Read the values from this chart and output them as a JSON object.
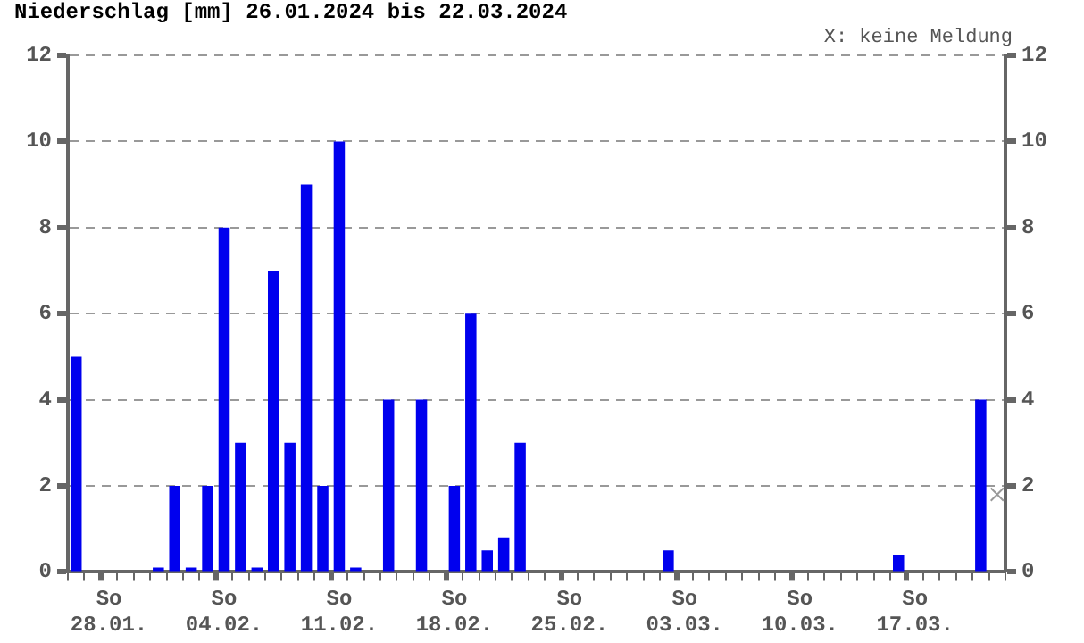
{
  "chart_data": {
    "type": "bar",
    "title": "Niederschlag [mm] 26.01.2024 bis 22.03.2024",
    "annotations": [
      "X: keine Meldung"
    ],
    "categories": [
      null,
      null,
      "So 28.01.",
      null,
      null,
      null,
      null,
      null,
      null,
      "So 04.02.",
      null,
      null,
      null,
      null,
      null,
      null,
      "So 11.02.",
      null,
      null,
      null,
      null,
      null,
      null,
      "So 18.02.",
      null,
      null,
      null,
      null,
      null,
      null,
      "So 25.02.",
      null,
      null,
      null,
      null,
      null,
      null,
      "So 03.03.",
      null,
      null,
      null,
      null,
      null,
      null,
      "So 10.03.",
      null,
      null,
      null,
      null,
      null,
      null,
      "So 17.03.",
      null,
      null,
      null,
      null,
      null
    ],
    "series": [
      {
        "color": "#0000ee",
        "values": [
          5,
          0,
          0,
          0,
          0,
          0.1,
          2,
          0.1,
          2,
          8,
          3,
          0.1,
          7,
          3,
          9,
          2,
          10,
          0.1,
          0,
          4,
          0,
          4,
          0,
          2,
          6,
          0.5,
          0.8,
          3,
          0,
          0,
          0,
          0,
          0,
          0,
          0,
          0,
          0.5,
          0,
          0,
          0,
          0,
          0,
          0,
          0,
          0,
          0,
          0,
          0,
          0,
          0,
          0.4,
          0,
          0,
          0,
          0,
          4,
          null
        ]
      },
      {
        "type": "scatter",
        "color": "#999999",
        "marker": "cross",
        "values": [
          null,
          null,
          null,
          null,
          null,
          null,
          null,
          null,
          null,
          null,
          null,
          null,
          null,
          null,
          null,
          null,
          null,
          null,
          null,
          null,
          null,
          null,
          null,
          null,
          null,
          null,
          null,
          null,
          null,
          null,
          null,
          null,
          null,
          null,
          null,
          null,
          null,
          null,
          null,
          null,
          null,
          null,
          null,
          null,
          null,
          null,
          null,
          null,
          null,
          null,
          null,
          null,
          null,
          null,
          null,
          null,
          1.8
        ]
      }
    ],
    "ylim": [
      0,
      12
    ],
    "yticks": [
      0,
      2,
      4,
      6,
      8,
      10,
      12
    ],
    "y2lim": [
      0,
      12
    ],
    "y2ticks": [
      0,
      2,
      4,
      6,
      8,
      10,
      12
    ],
    "grid": "y",
    "line_style": "dashed",
    "legend": false
  }
}
